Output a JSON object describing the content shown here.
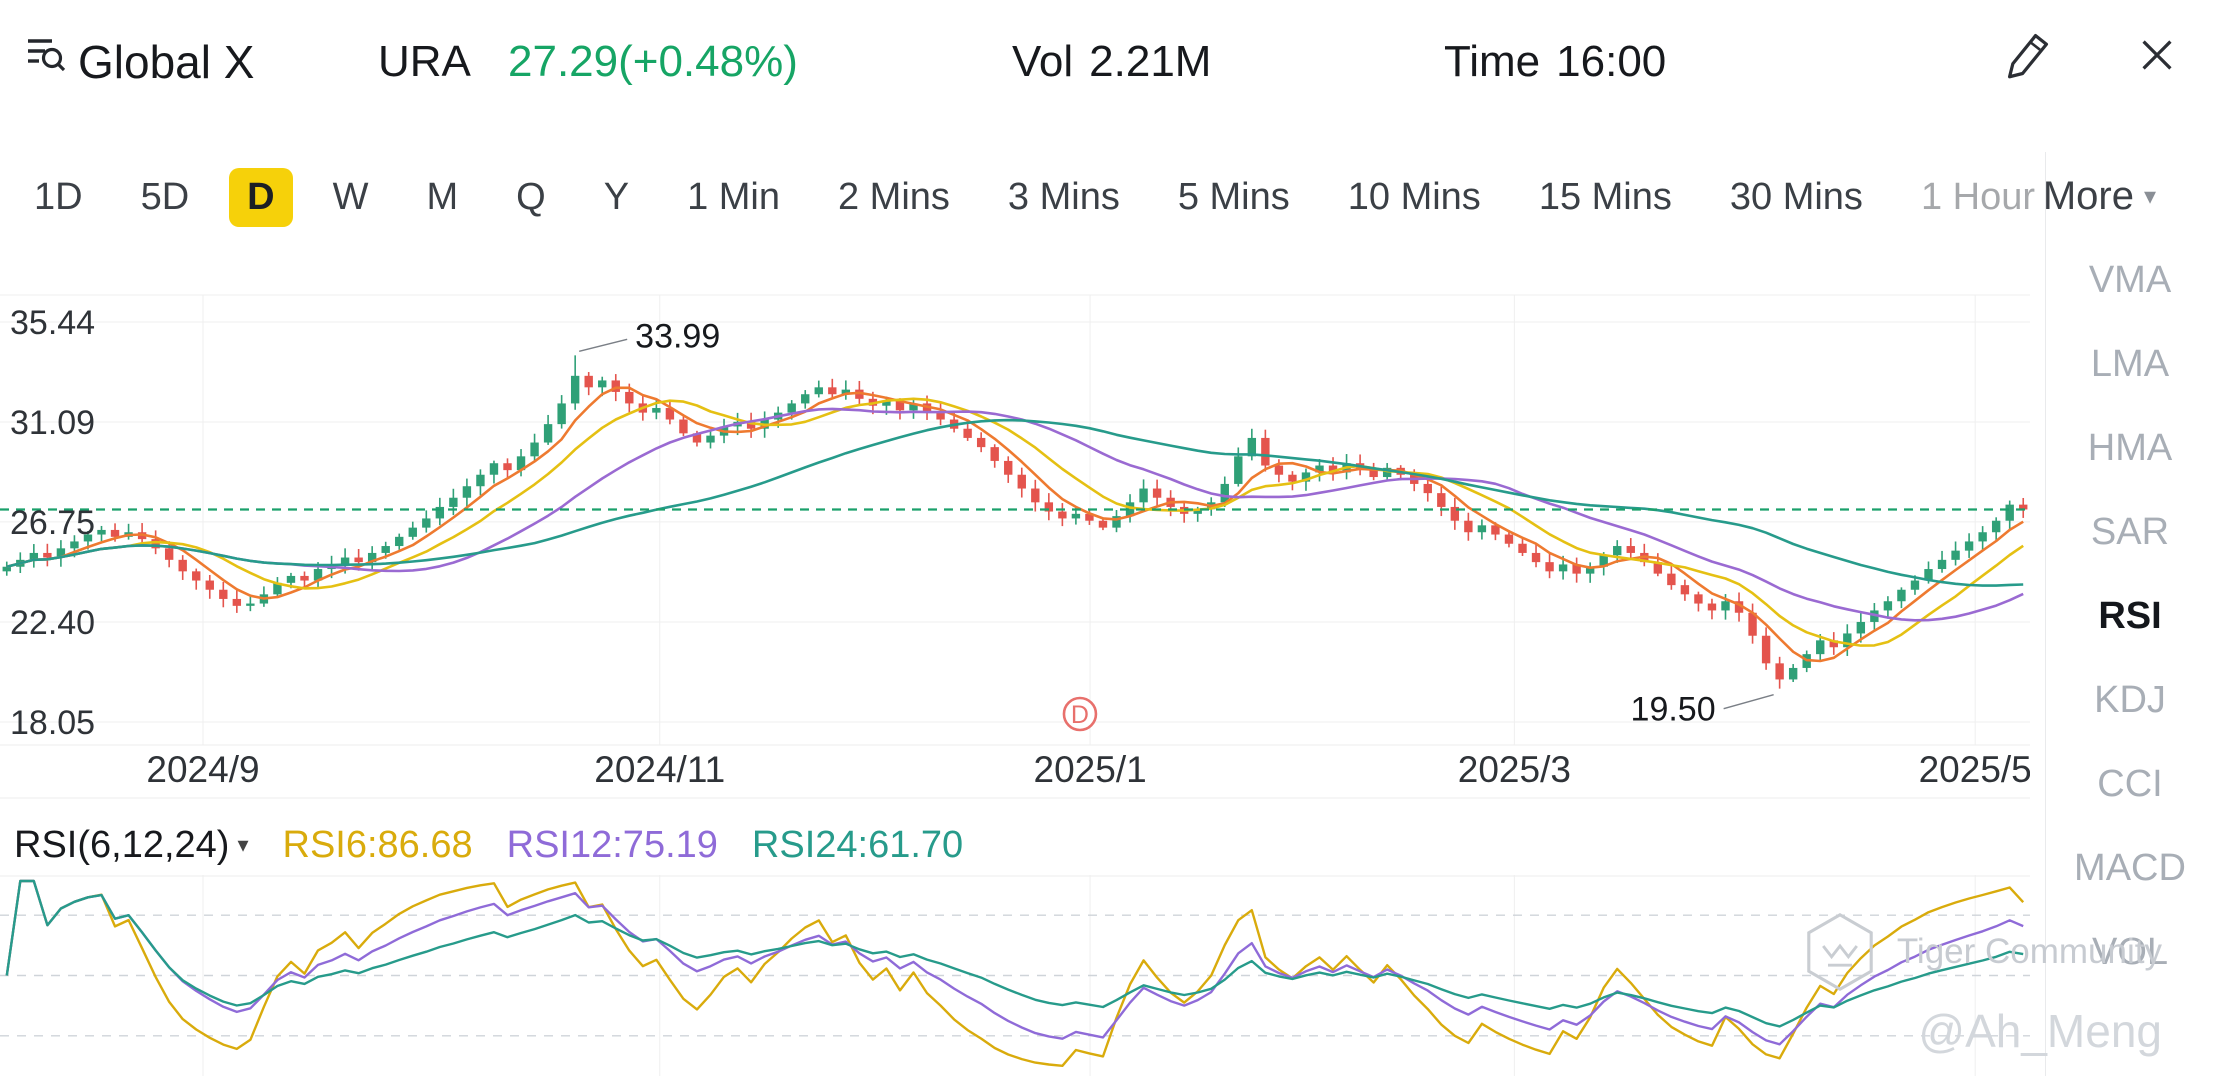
{
  "header": {
    "brand": "Global X",
    "symbol": "URA",
    "price_change": "27.29(+0.48%)",
    "price_color": "#16a565",
    "vol_label": "Vol",
    "vol_value": "2.21M",
    "time_label": "Time",
    "time_value": "16:00"
  },
  "tabs": {
    "items": [
      "1D",
      "5D",
      "D",
      "W",
      "M",
      "Q",
      "Y",
      "1 Min",
      "2 Mins",
      "3 Mins",
      "5 Mins",
      "10 Mins",
      "15 Mins",
      "30 Mins",
      "1 Hour"
    ],
    "selected": "D",
    "selected_bg": "#f6d10a",
    "more_label": "More"
  },
  "sidebar": {
    "items": [
      "VMA",
      "LMA",
      "HMA",
      "SAR",
      "RSI",
      "KDJ",
      "CCI",
      "MACD",
      "VOL"
    ],
    "selected": "RSI"
  },
  "rsi_header": {
    "title": "RSI(6,12,24)"
  },
  "watermark": {
    "community": "Tiger Community",
    "handle": "@Ah_Meng"
  },
  "chart_data": [
    {
      "type": "candlestick",
      "title": "URA daily candlestick chart",
      "y_ticks": [
        35.44,
        31.09,
        26.75,
        22.4,
        18.05
      ],
      "ylim": [
        18.05,
        35.44
      ],
      "x_ticks": [
        {
          "label": "2024/9",
          "f": 0.1
        },
        {
          "label": "2024/11",
          "f": 0.325
        },
        {
          "label": "2025/1",
          "f": 0.537
        },
        {
          "label": "2025/3",
          "f": 0.746
        },
        {
          "label": "2025/5",
          "f": 0.973
        }
      ],
      "current_price": 27.29,
      "first_open": 24.6,
      "closes": [
        24.8,
        25.1,
        25.4,
        25.2,
        25.6,
        25.9,
        26.2,
        26.4,
        26.1,
        26.3,
        26.0,
        25.6,
        25.1,
        24.6,
        24.2,
        23.8,
        23.4,
        23.1,
        23.2,
        23.6,
        24.1,
        24.4,
        24.2,
        24.7,
        24.9,
        25.2,
        25.0,
        25.4,
        25.7,
        26.1,
        26.5,
        26.9,
        27.4,
        27.8,
        28.3,
        28.8,
        29.3,
        29.0,
        29.6,
        30.2,
        31.0,
        31.9,
        33.1,
        32.6,
        32.9,
        32.4,
        31.9,
        31.5,
        31.7,
        31.2,
        30.6,
        30.2,
        30.5,
        30.9,
        31.1,
        30.8,
        31.2,
        31.5,
        31.9,
        32.3,
        32.6,
        32.3,
        32.5,
        32.1,
        31.8,
        32.0,
        31.6,
        31.9,
        31.5,
        31.2,
        30.8,
        30.4,
        30.0,
        29.4,
        28.8,
        28.2,
        27.6,
        27.2,
        26.9,
        27.1,
        26.8,
        26.5,
        27.0,
        27.6,
        28.2,
        27.8,
        27.4,
        27.1,
        27.3,
        27.6,
        28.4,
        29.6,
        30.4,
        29.2,
        28.8,
        28.5,
        28.9,
        29.2,
        28.9,
        29.3,
        29.0,
        28.7,
        29.1,
        28.8,
        28.4,
        28.0,
        27.4,
        26.8,
        26.3,
        26.6,
        26.2,
        25.8,
        25.4,
        25.0,
        24.6,
        24.9,
        24.5,
        24.8,
        25.3,
        25.7,
        25.4,
        25.0,
        24.5,
        24.0,
        23.6,
        23.2,
        22.9,
        23.3,
        22.8,
        21.8,
        20.6,
        19.9,
        20.4,
        21.0,
        21.6,
        21.3,
        21.9,
        22.4,
        22.9,
        23.3,
        23.8,
        24.2,
        24.7,
        25.1,
        25.5,
        25.9,
        26.3,
        26.8,
        27.5,
        27.29
      ],
      "annotations": {
        "high": {
          "index": 42,
          "price": 33.99,
          "label": "33.99"
        },
        "low": {
          "index": 131,
          "price": 19.5,
          "label": "19.50"
        },
        "event_marker": {
          "label": "D",
          "f": 0.532,
          "color": "#e8706c"
        }
      },
      "ma": [
        {
          "window": 5,
          "color": "#ee7a30"
        },
        {
          "window": 10,
          "color": "#e5c013"
        },
        {
          "window": 20,
          "color": "#9a6ad2"
        },
        {
          "window": 40,
          "color": "#279b8b"
        }
      ],
      "colors": {
        "up": "#2fa077",
        "down": "#e4544d",
        "price_line": "#1ba06b"
      }
    },
    {
      "type": "line",
      "title": "RSI(6,12,24)",
      "ylim": [
        0,
        100
      ],
      "guides": [
        80,
        50,
        20
      ],
      "series": [
        {
          "name": "RSI6",
          "period": 6,
          "color": "#d9ab0c",
          "value": 86.68
        },
        {
          "name": "RSI12",
          "period": 12,
          "color": "#8f6bd8",
          "value": 75.19
        },
        {
          "name": "RSI24",
          "period": 24,
          "color": "#279b8b",
          "value": 61.7
        }
      ]
    }
  ]
}
